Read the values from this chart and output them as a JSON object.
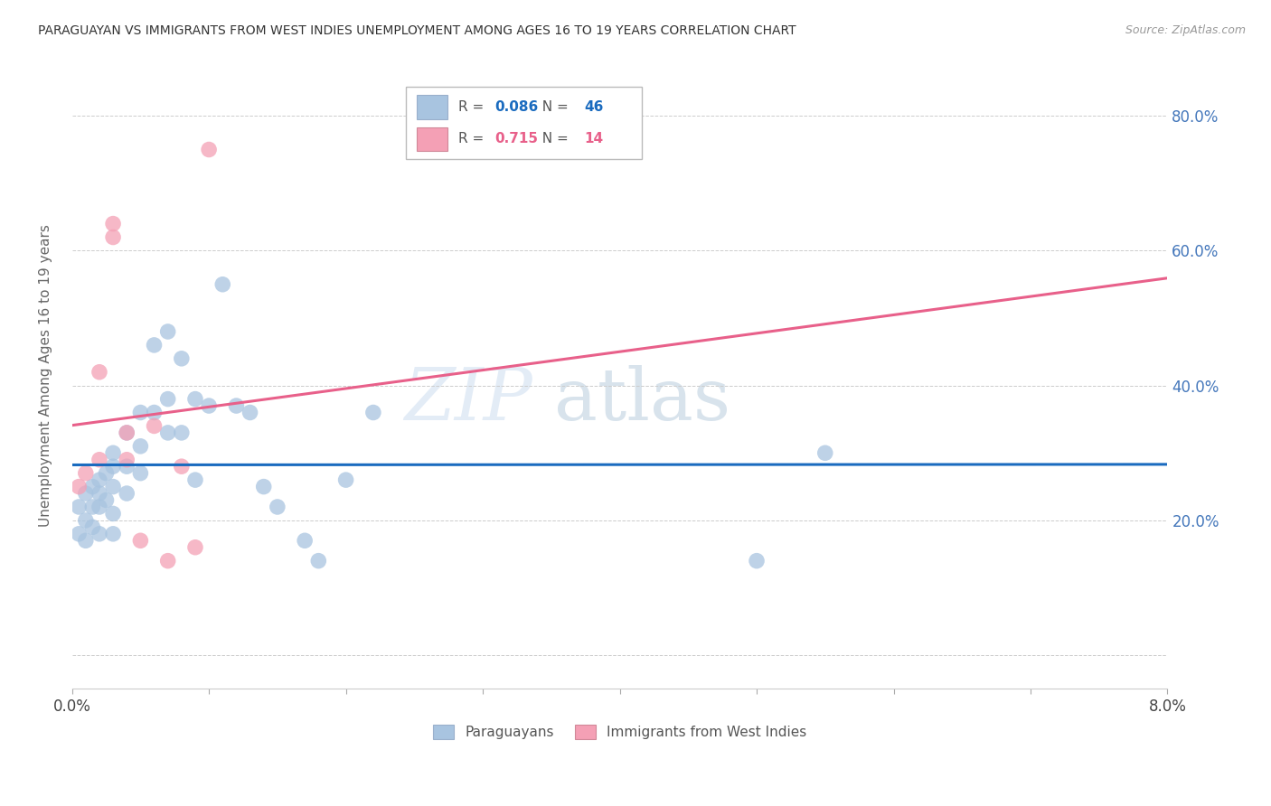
{
  "title": "PARAGUAYAN VS IMMIGRANTS FROM WEST INDIES UNEMPLOYMENT AMONG AGES 16 TO 19 YEARS CORRELATION CHART",
  "source": "Source: ZipAtlas.com",
  "ylabel": "Unemployment Among Ages 16 to 19 years",
  "xlim": [
    0.0,
    0.08
  ],
  "ylim": [
    -0.05,
    0.88
  ],
  "yticks": [
    0.0,
    0.2,
    0.4,
    0.6,
    0.8
  ],
  "ytick_labels": [
    "",
    "20.0%",
    "40.0%",
    "60.0%",
    "80.0%"
  ],
  "xticks": [
    0.0,
    0.01,
    0.02,
    0.03,
    0.04,
    0.05,
    0.06,
    0.07,
    0.08
  ],
  "R_blue": 0.086,
  "N_blue": 46,
  "R_pink": 0.715,
  "N_pink": 14,
  "blue_color": "#a8c4e0",
  "pink_color": "#f4a0b5",
  "blue_line_color": "#1a6bbf",
  "pink_line_color": "#e8608a",
  "legend_label_blue": "Paraguayans",
  "legend_label_pink": "Immigrants from West Indies",
  "watermark_zip": "ZIP",
  "watermark_atlas": "atlas",
  "blue_points_x": [
    0.0005,
    0.0005,
    0.001,
    0.001,
    0.001,
    0.0015,
    0.0015,
    0.0015,
    0.002,
    0.002,
    0.002,
    0.002,
    0.0025,
    0.0025,
    0.003,
    0.003,
    0.003,
    0.003,
    0.003,
    0.004,
    0.004,
    0.004,
    0.005,
    0.005,
    0.005,
    0.006,
    0.006,
    0.007,
    0.007,
    0.007,
    0.008,
    0.008,
    0.009,
    0.009,
    0.01,
    0.011,
    0.012,
    0.013,
    0.014,
    0.015,
    0.017,
    0.018,
    0.02,
    0.022,
    0.05,
    0.055
  ],
  "blue_points_y": [
    0.18,
    0.22,
    0.24,
    0.2,
    0.17,
    0.25,
    0.22,
    0.19,
    0.26,
    0.24,
    0.22,
    0.18,
    0.27,
    0.23,
    0.3,
    0.28,
    0.25,
    0.21,
    0.18,
    0.33,
    0.28,
    0.24,
    0.36,
    0.31,
    0.27,
    0.46,
    0.36,
    0.48,
    0.38,
    0.33,
    0.44,
    0.33,
    0.38,
    0.26,
    0.37,
    0.55,
    0.37,
    0.36,
    0.25,
    0.22,
    0.17,
    0.14,
    0.26,
    0.36,
    0.14,
    0.3
  ],
  "pink_points_x": [
    0.0005,
    0.001,
    0.002,
    0.002,
    0.003,
    0.003,
    0.004,
    0.004,
    0.005,
    0.006,
    0.007,
    0.008,
    0.009,
    0.01
  ],
  "pink_points_y": [
    0.25,
    0.27,
    0.42,
    0.29,
    0.64,
    0.62,
    0.33,
    0.29,
    0.17,
    0.34,
    0.14,
    0.28,
    0.16,
    0.75
  ]
}
